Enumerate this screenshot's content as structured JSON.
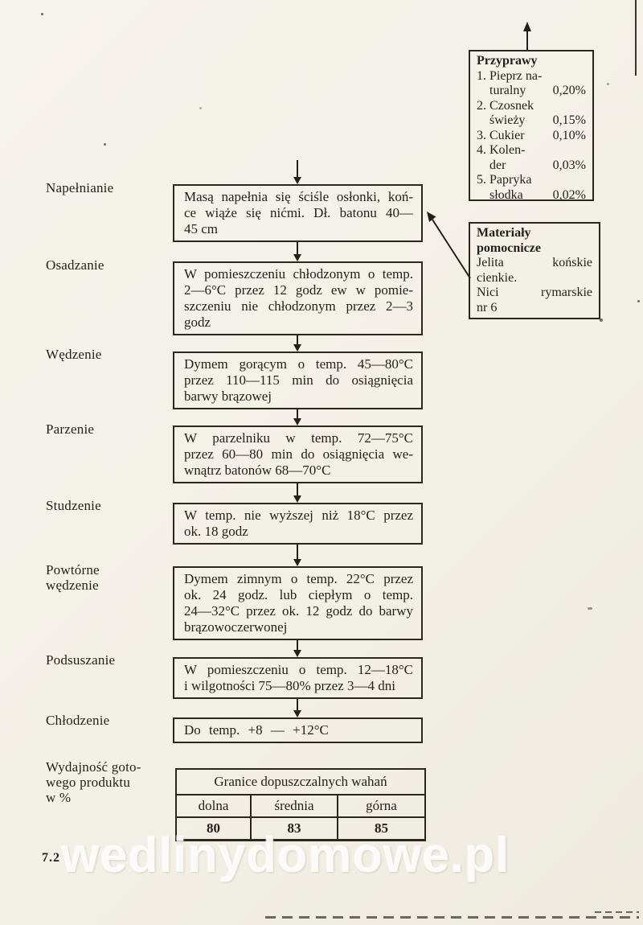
{
  "page": {
    "number": "7.2",
    "watermark": "wedlinydomowe.pl"
  },
  "flow": {
    "steps": [
      {
        "label": "Napełnianie",
        "lines": [
          "Masą napełnia się ściśle osłonki, koń-",
          "ce wiąże się nićmi. Dł. batonu 40—",
          "45 cm"
        ]
      },
      {
        "label": "Osadzanie",
        "lines": [
          "W pomieszczeniu chłodzonym o temp.",
          "2—6°C przez 12 godz ew w pomie-",
          "szczeniu nie chłodzonym przez 2—3",
          "godz"
        ]
      },
      {
        "label": "Wędzenie",
        "lines": [
          "Dymem gorącym o temp. 45—80°C",
          "przez 110—115 min do osiągnięcia",
          "barwy brązowej"
        ]
      },
      {
        "label": "Parzenie",
        "lines": [
          "W parzelniku w temp. 72—75°C",
          "przez 60—80 min do osiągnięcia we-",
          "wnątrz batonów 68—70°C"
        ]
      },
      {
        "label": "Studzenie",
        "lines": [
          "W temp. nie wyższej niż 18°C przez",
          "ok. 18 godz"
        ]
      },
      {
        "label": "Powtórne\nwędzenie",
        "lines": [
          "Dymem zimnym o temp. 22°C przez",
          "ok. 24 godz. lub ciepłym o temp.",
          "24—32°C przez ok. 12 godz do barwy",
          "brązowoczerwonej"
        ]
      },
      {
        "label": "Podsuszanie",
        "lines": [
          "W pomieszczeniu o temp. 12—18°C",
          "i wilgotności 75—80% przez 3—4 dni"
        ]
      },
      {
        "label": "Chłodzenie",
        "lines": [
          "Do temp. +8 — +12°C"
        ]
      }
    ]
  },
  "spices": {
    "title": "Przyprawy",
    "rows": [
      {
        "name": "1. Pieprz na-",
        "pct": ""
      },
      {
        "name": "    turalny",
        "pct": "0,20%"
      },
      {
        "name": "2. Czosnek",
        "pct": ""
      },
      {
        "name": "    świeży",
        "pct": "0,15%"
      },
      {
        "name": "3. Cukier",
        "pct": "0,10%"
      },
      {
        "name": "4. Kolen-",
        "pct": ""
      },
      {
        "name": "    der",
        "pct": "0,03%"
      },
      {
        "name": "5. Papryka",
        "pct": ""
      },
      {
        "name": "    słodka",
        "pct": "0,02%"
      }
    ]
  },
  "materials": {
    "title": "Materiały\npomocnicze",
    "lines": [
      "Jelita końskie",
      "cienkie.",
      "Nici rymarskie",
      "nr 6"
    ]
  },
  "yield": {
    "label": "Wydajność goto-\nwego produktu\nw %",
    "table": {
      "caption": "Granice dopuszczalnych wahań",
      "columns": [
        "dolna",
        "średnia",
        "górna"
      ],
      "values": [
        "80",
        "83",
        "85"
      ]
    }
  }
}
